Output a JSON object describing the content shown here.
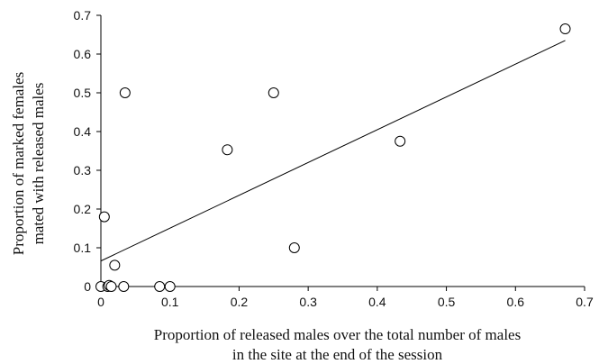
{
  "chart_data": {
    "type": "scatter",
    "xlabel_lines": [
      "Proportion of released males over the total number of males",
      "in the site at the end of the session"
    ],
    "ylabel_lines": [
      "Proportion of marked females",
      "mated with released males"
    ],
    "xlim": [
      0,
      0.7
    ],
    "ylim": [
      0,
      0.7
    ],
    "xticks": [
      "0",
      "0.1",
      "0.2",
      "0.3",
      "0.4",
      "0.5",
      "0.6",
      "0.7"
    ],
    "yticks": [
      "0",
      "0.1",
      "0.2",
      "0.3",
      "0.4",
      "0.5",
      "0.6",
      "0.7"
    ],
    "grid": false,
    "legend": false,
    "points": [
      {
        "x": 0.0,
        "y": 0.0
      },
      {
        "x": 0.005,
        "y": 0.18
      },
      {
        "x": 0.01,
        "y": 0.0
      },
      {
        "x": 0.012,
        "y": 0.003
      },
      {
        "x": 0.015,
        "y": 0.0
      },
      {
        "x": 0.02,
        "y": 0.055
      },
      {
        "x": 0.033,
        "y": 0.0
      },
      {
        "x": 0.035,
        "y": 0.5
      },
      {
        "x": 0.085,
        "y": 0.0
      },
      {
        "x": 0.1,
        "y": 0.0
      },
      {
        "x": 0.183,
        "y": 0.353
      },
      {
        "x": 0.25,
        "y": 0.5
      },
      {
        "x": 0.28,
        "y": 0.1
      },
      {
        "x": 0.433,
        "y": 0.375
      },
      {
        "x": 0.672,
        "y": 0.665
      }
    ],
    "trendline": {
      "x": [
        0.0,
        0.672
      ],
      "y": [
        0.066,
        0.635
      ]
    }
  }
}
